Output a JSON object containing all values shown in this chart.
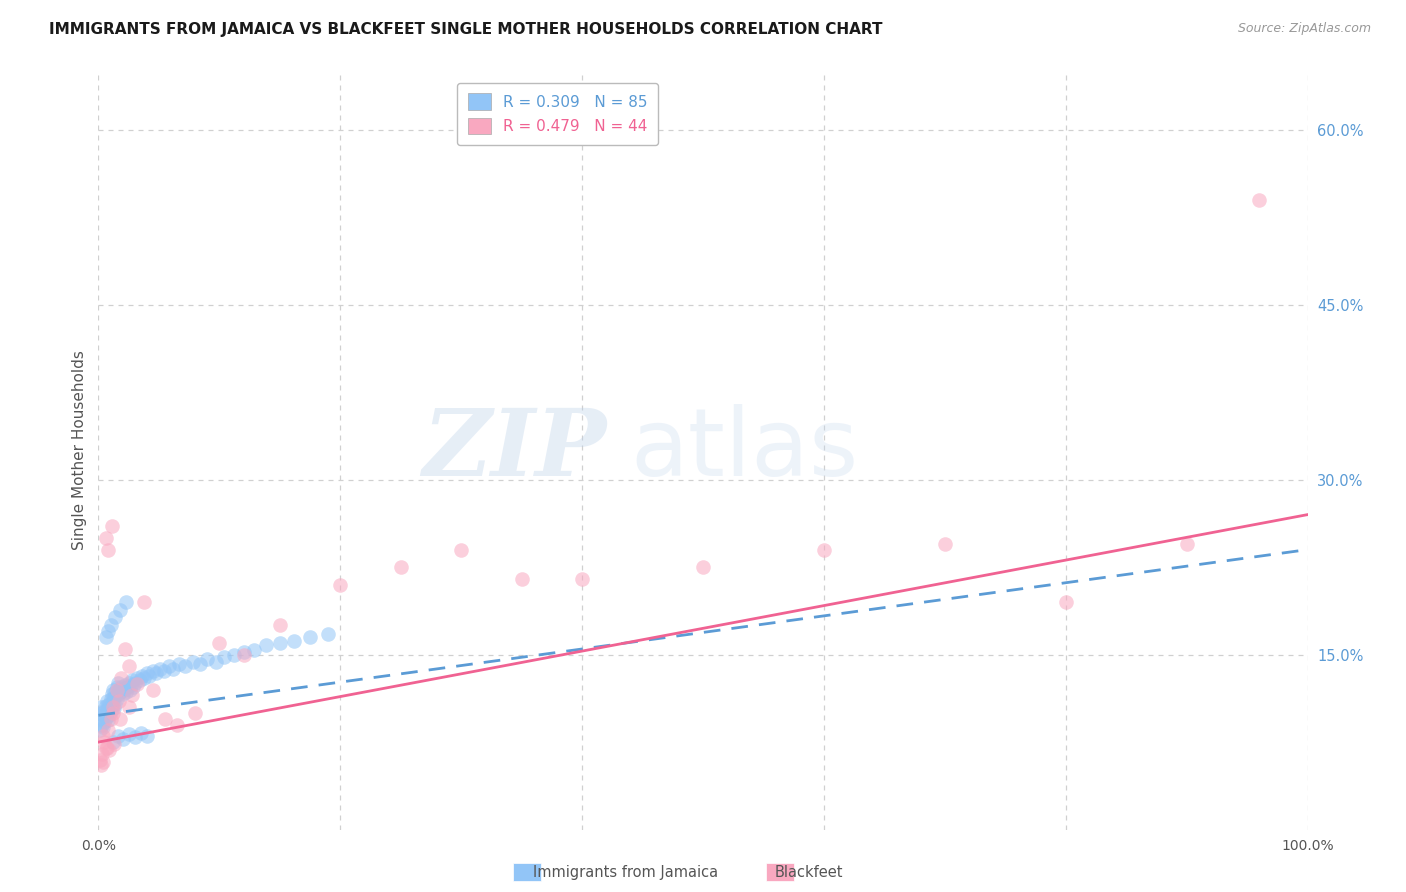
{
  "title": "IMMIGRANTS FROM JAMAICA VS BLACKFEET SINGLE MOTHER HOUSEHOLDS CORRELATION CHART",
  "source": "Source: ZipAtlas.com",
  "ylabel": "Single Mother Households",
  "watermark_zip": "ZIP",
  "watermark_atlas": "atlas",
  "xlim": [
    0.0,
    1.0
  ],
  "ylim": [
    0.0,
    0.65
  ],
  "xticks": [
    0.0,
    0.2,
    0.4,
    0.6,
    0.8,
    1.0
  ],
  "xticklabels": [
    "0.0%",
    "",
    "",
    "",
    "",
    "100.0%"
  ],
  "yticks_right": [
    0.15,
    0.3,
    0.45,
    0.6
  ],
  "yticklabels_right": [
    "15.0%",
    "30.0%",
    "45.0%",
    "60.0%"
  ],
  "blue_color": "#92C5F7",
  "pink_color": "#F9A8C0",
  "blue_line_color": "#5B9BD5",
  "pink_line_color": "#F06292",
  "legend_blue_r": "R = 0.309",
  "legend_blue_n": "N = 85",
  "legend_pink_r": "R = 0.479",
  "legend_pink_n": "N = 44",
  "background_color": "#ffffff",
  "grid_color": "#d0d0d0",
  "title_color": "#1a1a1a",
  "axis_label_color": "#555555",
  "right_tick_color": "#5B9BD5",
  "scatter_alpha": 0.55,
  "scatter_size": 110,
  "blue_scatter_x": [
    0.001,
    0.002,
    0.002,
    0.003,
    0.003,
    0.004,
    0.004,
    0.005,
    0.005,
    0.006,
    0.006,
    0.007,
    0.007,
    0.008,
    0.008,
    0.009,
    0.009,
    0.01,
    0.01,
    0.011,
    0.011,
    0.012,
    0.012,
    0.013,
    0.013,
    0.014,
    0.014,
    0.015,
    0.015,
    0.016,
    0.016,
    0.017,
    0.018,
    0.019,
    0.02,
    0.021,
    0.022,
    0.023,
    0.024,
    0.025,
    0.026,
    0.027,
    0.028,
    0.029,
    0.03,
    0.032,
    0.034,
    0.036,
    0.038,
    0.04,
    0.042,
    0.045,
    0.048,
    0.051,
    0.054,
    0.058,
    0.062,
    0.067,
    0.072,
    0.078,
    0.084,
    0.09,
    0.097,
    0.104,
    0.112,
    0.12,
    0.129,
    0.139,
    0.15,
    0.162,
    0.175,
    0.19,
    0.006,
    0.008,
    0.01,
    0.014,
    0.018,
    0.023,
    0.012,
    0.016,
    0.02,
    0.025,
    0.03,
    0.035,
    0.04
  ],
  "blue_scatter_y": [
    0.085,
    0.095,
    0.105,
    0.09,
    0.1,
    0.088,
    0.098,
    0.092,
    0.102,
    0.096,
    0.106,
    0.1,
    0.11,
    0.094,
    0.104,
    0.098,
    0.108,
    0.102,
    0.112,
    0.106,
    0.116,
    0.11,
    0.12,
    0.104,
    0.114,
    0.108,
    0.118,
    0.112,
    0.122,
    0.116,
    0.126,
    0.12,
    0.118,
    0.122,
    0.116,
    0.12,
    0.124,
    0.118,
    0.122,
    0.126,
    0.12,
    0.124,
    0.128,
    0.122,
    0.126,
    0.13,
    0.128,
    0.132,
    0.13,
    0.134,
    0.132,
    0.136,
    0.134,
    0.138,
    0.136,
    0.14,
    0.138,
    0.142,
    0.14,
    0.144,
    0.142,
    0.146,
    0.144,
    0.148,
    0.15,
    0.152,
    0.154,
    0.158,
    0.16,
    0.162,
    0.165,
    0.168,
    0.165,
    0.17,
    0.175,
    0.182,
    0.188,
    0.195,
    0.075,
    0.08,
    0.078,
    0.082,
    0.079,
    0.083,
    0.08
  ],
  "pink_scatter_x": [
    0.001,
    0.002,
    0.003,
    0.004,
    0.005,
    0.006,
    0.007,
    0.008,
    0.009,
    0.01,
    0.011,
    0.012,
    0.013,
    0.015,
    0.017,
    0.019,
    0.022,
    0.025,
    0.028,
    0.032,
    0.038,
    0.045,
    0.055,
    0.065,
    0.08,
    0.1,
    0.12,
    0.15,
    0.2,
    0.25,
    0.3,
    0.35,
    0.4,
    0.5,
    0.6,
    0.7,
    0.8,
    0.9,
    0.004,
    0.006,
    0.008,
    0.012,
    0.018,
    0.025
  ],
  "pink_scatter_y": [
    0.06,
    0.055,
    0.065,
    0.058,
    0.075,
    0.25,
    0.07,
    0.24,
    0.068,
    0.095,
    0.26,
    0.105,
    0.073,
    0.12,
    0.11,
    0.13,
    0.155,
    0.14,
    0.115,
    0.125,
    0.195,
    0.12,
    0.095,
    0.09,
    0.1,
    0.16,
    0.15,
    0.175,
    0.21,
    0.225,
    0.24,
    0.215,
    0.215,
    0.225,
    0.24,
    0.245,
    0.195,
    0.245,
    0.08,
    0.07,
    0.085,
    0.1,
    0.095,
    0.105
  ],
  "pink_scatter_x_outlier": [
    0.96
  ],
  "pink_scatter_y_outlier": [
    0.54
  ],
  "blue_trendline_x": [
    0.0,
    1.0
  ],
  "blue_trendline_y": [
    0.098,
    0.24
  ],
  "pink_trendline_x": [
    0.0,
    1.0
  ],
  "pink_trendline_y": [
    0.075,
    0.27
  ]
}
